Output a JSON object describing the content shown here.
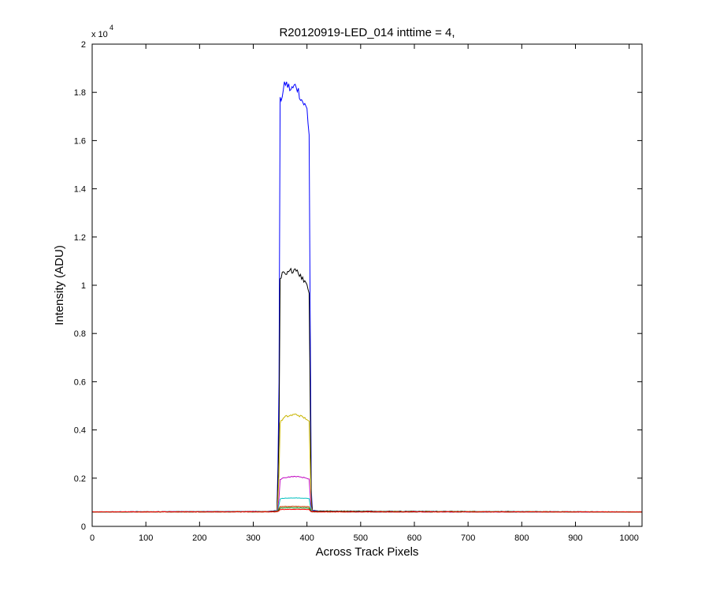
{
  "chart_data": {
    "type": "line",
    "title": "R20120919-LED_014 inttime = 4,",
    "xlabel": "Across Track Pixels",
    "ylabel": "Intensity (ADU)",
    "y_multiplier_label": "x 10",
    "y_multiplier_exponent": "4",
    "xlim": [
      0,
      1024
    ],
    "ylim": [
      0,
      2
    ],
    "y_scale_factor": 10000,
    "xticks": [
      0,
      100,
      200,
      300,
      400,
      500,
      600,
      700,
      800,
      900,
      1000
    ],
    "xtick_labels": [
      "0",
      "100",
      "200",
      "300",
      "400",
      "500",
      "600",
      "700",
      "800",
      "900",
      "1000"
    ],
    "yticks": [
      0,
      0.2,
      0.4,
      0.6,
      0.8,
      1,
      1.2,
      1.4,
      1.6,
      1.8,
      2
    ],
    "ytick_labels": [
      "0",
      "0.2",
      "0.4",
      "0.6",
      "0.8",
      "1",
      "1.2",
      "1.4",
      "1.6",
      "1.8",
      "2"
    ],
    "grid": false,
    "series": [
      {
        "color": "#0000ff",
        "baseline": 600,
        "x": [
          0,
          330,
          345,
          348,
          350,
          355,
          360,
          370,
          380,
          390,
          400,
          405,
          407,
          410,
          420,
          450,
          480,
          490,
          1024
        ],
        "y": [
          600,
          620,
          660,
          6000,
          17600,
          18000,
          18400,
          18100,
          18300,
          17700,
          17300,
          16000,
          2000,
          660,
          640,
          620,
          600,
          600,
          600
        ]
      },
      {
        "color": "#000000",
        "baseline": 600,
        "x": [
          0,
          330,
          345,
          348,
          350,
          355,
          360,
          370,
          380,
          390,
          400,
          405,
          407,
          410,
          1024
        ],
        "y": [
          600,
          620,
          650,
          4000,
          10200,
          10500,
          10400,
          10600,
          10700,
          10300,
          10100,
          9500,
          1500,
          640,
          600
        ]
      },
      {
        "color": "#c8b400",
        "baseline": 600,
        "x": [
          0,
          330,
          345,
          348,
          350,
          355,
          360,
          370,
          380,
          390,
          400,
          405,
          407,
          410,
          1024
        ],
        "y": [
          600,
          610,
          630,
          2200,
          4300,
          4450,
          4550,
          4600,
          4650,
          4550,
          4450,
          4300,
          900,
          620,
          600
        ]
      },
      {
        "color": "#bf00bf",
        "baseline": 600,
        "x": [
          0,
          330,
          345,
          348,
          350,
          355,
          360,
          370,
          380,
          390,
          400,
          405,
          407,
          410,
          1024
        ],
        "y": [
          600,
          610,
          620,
          1200,
          1950,
          2000,
          2030,
          2060,
          2070,
          2040,
          2000,
          1950,
          700,
          610,
          600
        ]
      },
      {
        "color": "#00bfbf",
        "baseline": 600,
        "x": [
          0,
          330,
          345,
          348,
          350,
          355,
          360,
          370,
          380,
          390,
          400,
          405,
          407,
          410,
          1024
        ],
        "y": [
          600,
          605,
          615,
          900,
          1140,
          1160,
          1170,
          1180,
          1180,
          1170,
          1160,
          1140,
          650,
          610,
          600
        ]
      },
      {
        "color": "#bf4000",
        "baseline": 600,
        "x": [
          0,
          330,
          345,
          348,
          350,
          360,
          380,
          400,
          405,
          407,
          410,
          1024
        ],
        "y": [
          600,
          605,
          610,
          750,
          820,
          830,
          830,
          820,
          810,
          620,
          605,
          600
        ]
      },
      {
        "color": "#008000",
        "baseline": 600,
        "x": [
          0,
          330,
          345,
          348,
          350,
          360,
          380,
          400,
          405,
          407,
          410,
          1024
        ],
        "y": [
          600,
          603,
          608,
          700,
          760,
          770,
          770,
          760,
          750,
          615,
          603,
          600
        ]
      },
      {
        "color": "#ff0000",
        "baseline": 600,
        "x": [
          0,
          330,
          345,
          348,
          350,
          360,
          380,
          400,
          405,
          407,
          410,
          1024
        ],
        "y": [
          600,
          602,
          606,
          650,
          700,
          705,
          705,
          700,
          695,
          610,
          602,
          600
        ]
      }
    ]
  }
}
